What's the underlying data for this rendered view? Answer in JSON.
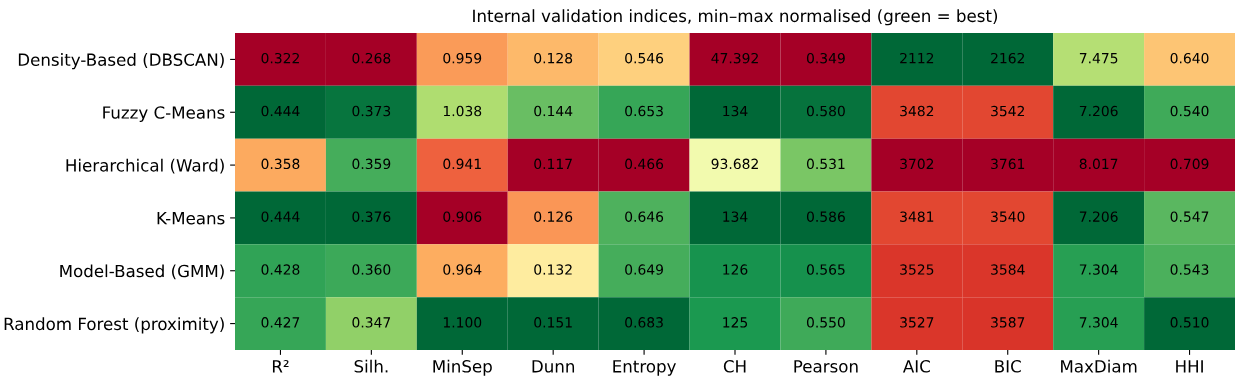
{
  "chart_data": {
    "type": "heatmap",
    "title": "Internal validation indices, min–max normalised (green = best)",
    "categories": [
      "R²",
      "Silh.",
      "MinSep",
      "Dunn",
      "Entropy",
      "CH",
      "Pearson",
      "AIC",
      "BIC",
      "MaxDiam",
      "HHI"
    ],
    "y_categories": [
      "Density-Based (DBSCAN)",
      "Fuzzy C-Means",
      "Hierarchical (Ward)",
      "K-Means",
      "Model-Based (GMM)",
      "Random Forest (proximity)"
    ],
    "cells": [
      [
        0.322,
        0.268,
        0.959,
        0.128,
        0.546,
        47.392,
        0.349,
        2112,
        2162,
        7.475,
        0.64
      ],
      [
        0.444,
        0.373,
        1.038,
        0.144,
        0.653,
        134,
        0.58,
        3482,
        3542,
        7.206,
        0.54
      ],
      [
        0.358,
        0.359,
        0.941,
        0.117,
        0.466,
        93.682,
        0.531,
        3702,
        3761,
        8.017,
        0.709
      ],
      [
        0.444,
        0.376,
        0.906,
        0.126,
        0.646,
        134,
        0.586,
        3481,
        3540,
        7.206,
        0.547
      ],
      [
        0.428,
        0.36,
        0.964,
        0.132,
        0.649,
        126,
        0.565,
        3525,
        3584,
        7.304,
        0.543
      ],
      [
        0.427,
        0.347,
        1.1,
        0.151,
        0.683,
        125,
        0.55,
        3527,
        3587,
        7.304,
        0.51
      ]
    ],
    "cell_labels": [
      [
        "0.322",
        "0.268",
        "0.959",
        "0.128",
        "0.546",
        "47.392",
        "0.349",
        "2112",
        "2162",
        "7.475",
        "0.640"
      ],
      [
        "0.444",
        "0.373",
        "1.038",
        "0.144",
        "0.653",
        "134",
        "0.580",
        "3482",
        "3542",
        "7.206",
        "0.540"
      ],
      [
        "0.358",
        "0.359",
        "0.941",
        "0.117",
        "0.466",
        "93.682",
        "0.531",
        "3702",
        "3761",
        "8.017",
        "0.709"
      ],
      [
        "0.444",
        "0.376",
        "0.906",
        "0.126",
        "0.646",
        "134",
        "0.586",
        "3481",
        "3540",
        "7.206",
        "0.547"
      ],
      [
        "0.428",
        "0.360",
        "0.964",
        "0.132",
        "0.649",
        "126",
        "0.565",
        "3525",
        "3584",
        "7.304",
        "0.543"
      ],
      [
        "0.427",
        "0.347",
        "1.100",
        "0.151",
        "0.683",
        "125",
        "0.550",
        "3527",
        "3587",
        "7.304",
        "0.510"
      ]
    ]
  }
}
